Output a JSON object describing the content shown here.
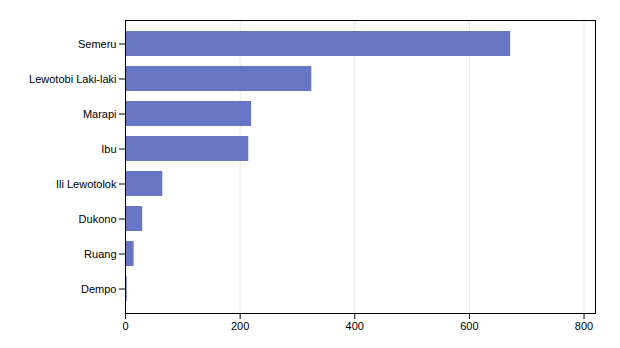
{
  "chart_data": {
    "type": "bar",
    "orientation": "horizontal",
    "categories": [
      "Dempo",
      "Ruang",
      "Dukono",
      "Ili Lewotolok",
      "Ibu",
      "Marapi",
      "Lewotobi Laki-laki",
      "Semeru"
    ],
    "values": [
      3,
      15,
      30,
      65,
      215,
      220,
      325,
      672
    ],
    "color": "#6675c4",
    "xlim": [
      0,
      820
    ],
    "xticks": [
      0,
      200,
      400,
      600,
      800
    ],
    "grid": true
  }
}
